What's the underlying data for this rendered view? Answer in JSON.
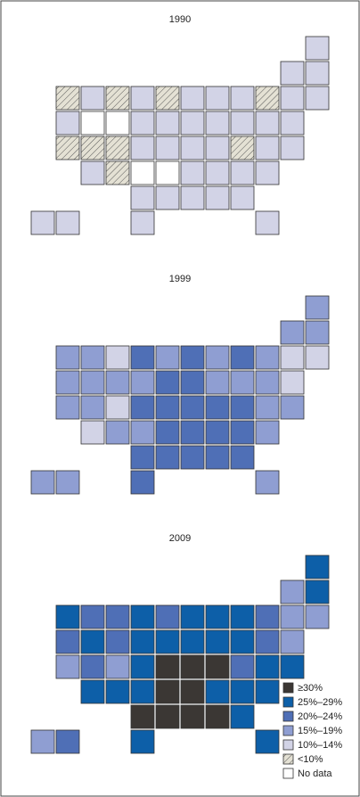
{
  "maps": [
    {
      "title": "1990",
      "levels": [
        4,
        4,
        4,
        4,
        4,
        5,
        4,
        5,
        4,
        5,
        4,
        4,
        4,
        5,
        4,
        4,
        4,
        6,
        6,
        4,
        4,
        4,
        4,
        4,
        4,
        4,
        5,
        5,
        5,
        4,
        4,
        4,
        4,
        5,
        4,
        4,
        4,
        5,
        6,
        6,
        4,
        4,
        4,
        4,
        4,
        4,
        4,
        4,
        4,
        4,
        4
      ]
    },
    {
      "title": "1999",
      "levels": [
        3,
        3,
        3,
        3,
        3,
        3,
        3,
        4,
        2,
        3,
        2,
        3,
        2,
        3,
        4,
        4,
        3,
        3,
        3,
        3,
        2,
        2,
        3,
        3,
        3,
        4,
        3,
        3,
        4,
        2,
        2,
        2,
        2,
        2,
        3,
        3,
        4,
        3,
        3,
        2,
        2,
        2,
        2,
        3,
        2,
        2,
        2,
        2,
        2,
        2,
        3
      ]
    },
    {
      "title": "2009",
      "levels": [
        3,
        2,
        1,
        3,
        1,
        1,
        2,
        2,
        1,
        2,
        1,
        1,
        1,
        2,
        3,
        3,
        2,
        1,
        2,
        1,
        1,
        1,
        1,
        1,
        2,
        3,
        3,
        2,
        3,
        1,
        0,
        0,
        0,
        2,
        1,
        1,
        1,
        1,
        1,
        0,
        0,
        1,
        1,
        1,
        0,
        0,
        0,
        0,
        1,
        1,
        1
      ]
    }
  ],
  "legend": [
    {
      "label": "≥30%",
      "color": "#3b3734"
    },
    {
      "label": "25%–29%",
      "color": "#0d5fa8"
    },
    {
      "label": "20%–24%",
      "color": "#4f6fb6"
    },
    {
      "label": "15%–19%",
      "color": "#8f9ed2"
    },
    {
      "label": "10%–14%",
      "color": "#d2d3e6"
    },
    {
      "label": "<10%",
      "color": "#e4e1d4",
      "hatched": true
    },
    {
      "label": "No data",
      "color": "#ffffff"
    }
  ]
}
